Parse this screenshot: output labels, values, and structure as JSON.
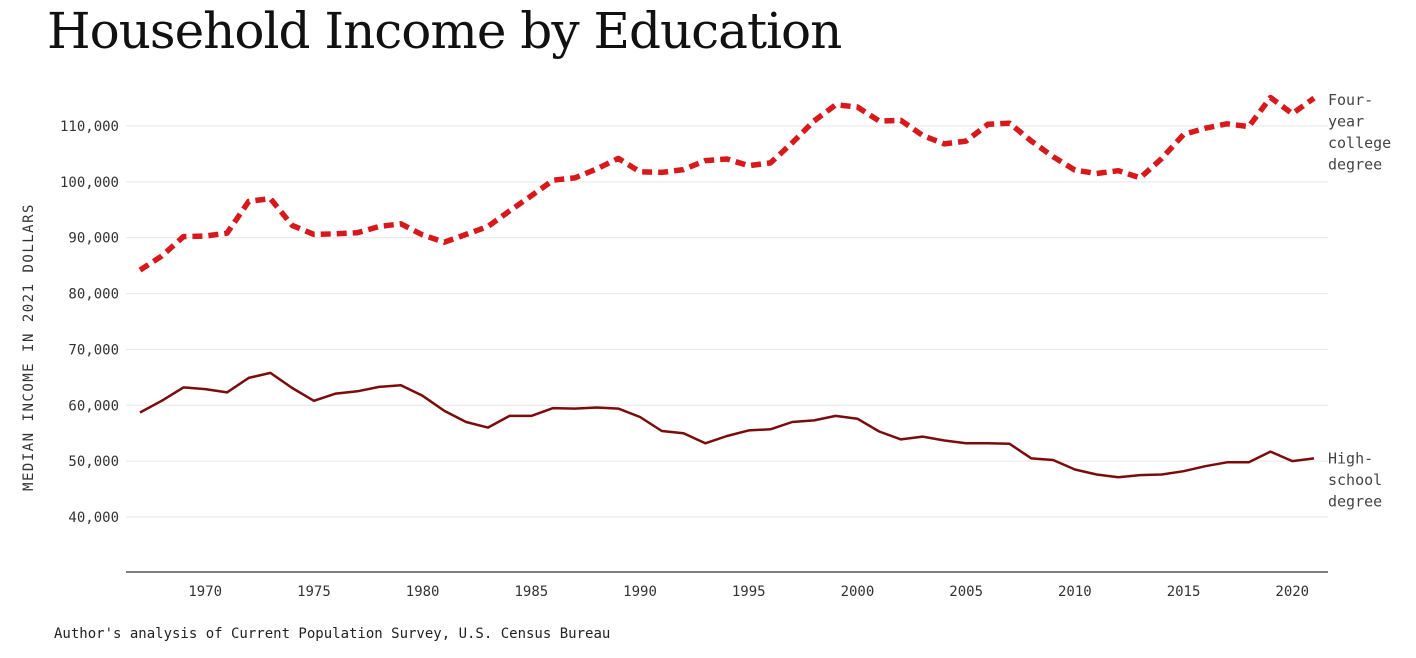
{
  "chart_data": {
    "type": "line",
    "title": "Household Income by Education",
    "ylabel": "MEDIAN INCOME IN 2021 DOLLARS",
    "xlabel": "",
    "source": "Author's analysis of Current Population Survey, U.S. Census Bureau",
    "ylim": [
      30000,
      117000
    ],
    "xlim": [
      1967,
      2022
    ],
    "yticks": [
      40000,
      50000,
      60000,
      70000,
      80000,
      90000,
      100000,
      110000
    ],
    "ytick_labels": [
      "40,000",
      "50,000",
      "60,000",
      "70,000",
      "80,000",
      "90,000",
      "100,000",
      "110,000"
    ],
    "xticks": [
      1970,
      1975,
      1980,
      1985,
      1990,
      1995,
      2000,
      2005,
      2010,
      2015,
      2020
    ],
    "xtick_labels": [
      "1970",
      "1975",
      "1980",
      "1985",
      "1990",
      "1995",
      "2000",
      "2005",
      "2010",
      "2015",
      "2020"
    ],
    "grid": "horizontal",
    "x": [
      1967,
      1968,
      1969,
      1970,
      1971,
      1972,
      1973,
      1974,
      1975,
      1976,
      1977,
      1978,
      1979,
      1980,
      1981,
      1982,
      1983,
      1984,
      1985,
      1986,
      1987,
      1988,
      1989,
      1990,
      1991,
      1992,
      1993,
      1994,
      1995,
      1996,
      1997,
      1998,
      1999,
      2000,
      2001,
      2002,
      2003,
      2004,
      2005,
      2006,
      2007,
      2008,
      2009,
      2010,
      2011,
      2012,
      2013,
      2014,
      2015,
      2016,
      2017,
      2018,
      2019,
      2020,
      2021
    ],
    "series": [
      {
        "name": "Four-year college degree",
        "label_lines": [
          "Four-",
          "year",
          "college",
          "degree"
        ],
        "color": "#d7191c",
        "style": "dashed",
        "values": [
          84200,
          86700,
          90200,
          90300,
          90800,
          96500,
          97000,
          92200,
          90600,
          90700,
          90900,
          92000,
          92500,
          90500,
          89200,
          90600,
          92000,
          94800,
          97500,
          100300,
          100700,
          102300,
          104200,
          101800,
          101700,
          102200,
          103800,
          104100,
          102900,
          103400,
          107000,
          110900,
          113800,
          113400,
          110900,
          111000,
          108300,
          106800,
          107300,
          110300,
          110500,
          107300,
          104500,
          102100,
          101500,
          102000,
          100700,
          104200,
          108500,
          109600,
          110400,
          109900,
          115100,
          112200,
          115000
        ]
      },
      {
        "name": "High-school degree",
        "label_lines": [
          "High-",
          "school",
          "degree"
        ],
        "color": "#7b0c0c",
        "style": "solid",
        "values": [
          58700,
          60800,
          63200,
          62900,
          62300,
          64900,
          65800,
          63100,
          60800,
          62100,
          62500,
          63300,
          63600,
          61700,
          59000,
          57000,
          56000,
          58100,
          58100,
          59500,
          59400,
          59600,
          59400,
          57900,
          55400,
          55000,
          53200,
          54500,
          55500,
          55700,
          57000,
          57300,
          58100,
          57600,
          55300,
          53900,
          54400,
          53700,
          53200,
          53200,
          53100,
          50500,
          50200,
          48500,
          47600,
          47100,
          47500,
          47600,
          48200,
          49100,
          49800,
          49800,
          51700,
          50000,
          50500
        ]
      }
    ]
  }
}
